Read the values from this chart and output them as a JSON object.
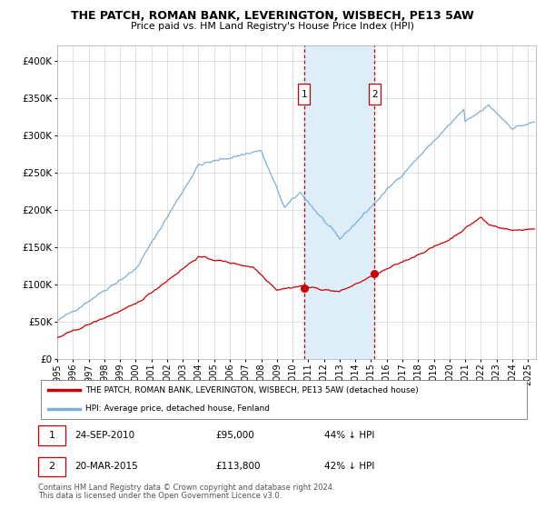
{
  "title": "THE PATCH, ROMAN BANK, LEVERINGTON, WISBECH, PE13 5AW",
  "subtitle": "Price paid vs. HM Land Registry's House Price Index (HPI)",
  "legend_line1": "THE PATCH, ROMAN BANK, LEVERINGTON, WISBECH, PE13 5AW (detached house)",
  "legend_line2": "HPI: Average price, detached house, Fenland",
  "footnote1": "Contains HM Land Registry data © Crown copyright and database right 2024.",
  "footnote2": "This data is licensed under the Open Government Licence v3.0.",
  "sale1_date": "24-SEP-2010",
  "sale1_price": "£95,000",
  "sale1_hpi": "44% ↓ HPI",
  "sale2_date": "20-MAR-2015",
  "sale2_price": "£113,800",
  "sale2_hpi": "42% ↓ HPI",
  "hpi_color": "#7ab0d8",
  "price_color": "#cc0000",
  "sale_line_color": "#cc0000",
  "shade_color": "#ddeef8",
  "ylim": [
    0,
    420000
  ],
  "yticks": [
    0,
    50000,
    100000,
    150000,
    200000,
    250000,
    300000,
    350000,
    400000
  ],
  "ytick_labels": [
    "£0",
    "£50K",
    "£100K",
    "£150K",
    "£200K",
    "£250K",
    "£300K",
    "£350K",
    "£400K"
  ],
  "sale1_year": 2010.73,
  "sale1_value": 95000,
  "sale2_year": 2015.22,
  "sale2_value": 113800,
  "xlim_left": 1995,
  "xlim_right": 2025.5
}
